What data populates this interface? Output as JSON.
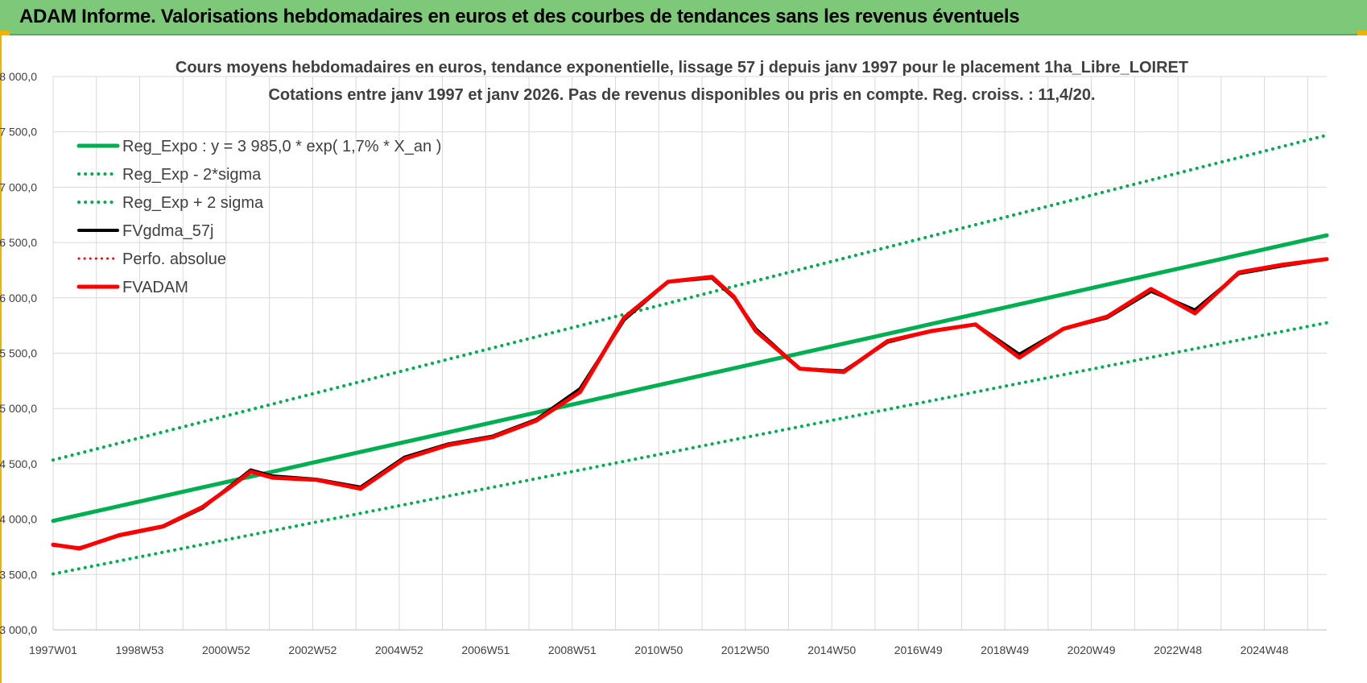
{
  "header": {
    "title": "ADAM Informe. Valorisations hebdomadaires en euros et des courbes de tendances sans les revenus éventuels"
  },
  "colors": {
    "banner": "#7dc879",
    "reg_expo": "#00b050",
    "fvadam": "#ff0000",
    "fvgdma": "#000000",
    "grid": "#d9d9d9",
    "accent": "#f0b400"
  },
  "chart_data": {
    "type": "line",
    "title": "Cours moyens hebdomadaires en euros, tendance exponentielle, lissage 57 j depuis janv 1997 pour le placement 1ha_Libre_LOIRET",
    "subtitle": "Cotations entre janv 1997 et janv 2026. Pas de revenus disponibles ou pris en compte. Reg. croiss. : 11,4/20.",
    "xlabel": "",
    "ylabel": "",
    "xlim": [
      1997.0,
      2026.0
    ],
    "ylim": [
      3000,
      8000
    ],
    "yticks": [
      "3 000,0",
      "3 500,0",
      "4 000,0",
      "4 500,0",
      "5 000,0",
      "5 500,0",
      "6 000,0",
      "6 500,0",
      "7 000,0",
      "7 500,0",
      "8 000,0"
    ],
    "xticks": [
      "1997W01",
      "1998W53",
      "2000W52",
      "2002W52",
      "2004W52",
      "2006W51",
      "2008W51",
      "2010W50",
      "2012W50",
      "2014W50",
      "2016W49",
      "2018W49",
      "2020W49",
      "2022W48",
      "2024W48"
    ],
    "grid": true,
    "legend_position": "top-left",
    "series": [
      {
        "name": "Reg_Expo : y = 3 985,0 * exp( 1,7% *  X_an )",
        "style": "solid-green",
        "x": [
          1997.0,
          2026.0
        ],
        "values": [
          3985,
          6565
        ]
      },
      {
        "name": "Reg_Exp - 2*sigma",
        "style": "dotted-green",
        "x": [
          1997.0,
          2026.0
        ],
        "values": [
          3505,
          5775
        ]
      },
      {
        "name": "Reg_Exp + 2 sigma",
        "style": "dotted-green",
        "x": [
          1997.0,
          2026.0
        ],
        "values": [
          4535,
          7470
        ]
      },
      {
        "name": "FVgdma_57j",
        "style": "solid-black",
        "x": [
          1997.0,
          1997.6,
          1998.5,
          1999.5,
          2000.4,
          2001.0,
          2001.5,
          2002.0,
          2003.0,
          2004.0,
          2005.0,
          2006.0,
          2007.0,
          2008.0,
          2009.0,
          2010.0,
          2011.0,
          2012.0,
          2012.5,
          2013.0,
          2014.0,
          2015.0,
          2016.0,
          2017.0,
          2018.0,
          2019.0,
          2020.0,
          2021.0,
          2022.0,
          2023.0,
          2024.0,
          2025.0,
          2026.0
        ],
        "values": [
          3765,
          3740,
          3850,
          3930,
          4100,
          4290,
          4445,
          4390,
          4360,
          4290,
          4560,
          4680,
          4750,
          4900,
          5180,
          5800,
          6145,
          6180,
          6000,
          5720,
          5360,
          5340,
          5600,
          5700,
          5760,
          5490,
          5720,
          5820,
          6060,
          5890,
          6220,
          6290,
          6350
        ]
      },
      {
        "name": "Perfo. absolue",
        "style": "dotted-red",
        "x": [],
        "values": []
      },
      {
        "name": "FVADAM",
        "style": "solid-red",
        "x": [
          1997.0,
          1997.6,
          1998.5,
          1999.5,
          2000.4,
          2001.0,
          2001.5,
          2002.0,
          2003.0,
          2004.0,
          2005.0,
          2006.0,
          2007.0,
          2008.0,
          2009.0,
          2010.0,
          2011.0,
          2012.0,
          2012.5,
          2013.0,
          2014.0,
          2015.0,
          2016.0,
          2017.0,
          2018.0,
          2019.0,
          2020.0,
          2021.0,
          2022.0,
          2023.0,
          2024.0,
          2025.0,
          2026.0
        ],
        "values": [
          3770,
          3735,
          3855,
          3935,
          4110,
          4280,
          4430,
          4375,
          4355,
          4275,
          4545,
          4670,
          4740,
          4890,
          5150,
          5820,
          6145,
          6190,
          6010,
          5700,
          5360,
          5330,
          5610,
          5700,
          5760,
          5460,
          5720,
          5830,
          6080,
          5860,
          6230,
          6300,
          6350
        ]
      }
    ]
  }
}
